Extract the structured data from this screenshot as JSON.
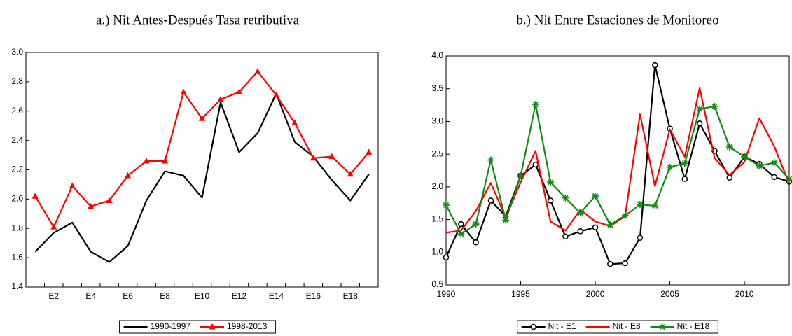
{
  "chart_data": [
    {
      "type": "line",
      "title": "a.) Nit Antes-Después Tasa retributiva",
      "categories": [
        null,
        "E2",
        null,
        "E4",
        null,
        "E6",
        null,
        "E8",
        null,
        "E10",
        null,
        "E12",
        null,
        "E14",
        null,
        "E16",
        null,
        "E18",
        null
      ],
      "series": [
        {
          "name": "1990-1997",
          "color": "#000000",
          "marker": "none",
          "values": [
            1.64,
            1.77,
            1.84,
            1.64,
            1.57,
            1.68,
            1.99,
            2.19,
            2.16,
            2.01,
            2.66,
            2.32,
            2.45,
            2.72,
            2.39,
            2.29,
            2.13,
            1.99,
            2.17
          ]
        },
        {
          "name": "1998-2013",
          "color": "#ff0000",
          "marker": "triangle",
          "values": [
            2.02,
            1.81,
            2.09,
            1.95,
            1.99,
            2.16,
            2.26,
            2.26,
            2.73,
            2.55,
            2.68,
            2.73,
            2.87,
            2.71,
            2.52,
            2.28,
            2.29,
            2.17,
            2.32
          ]
        }
      ],
      "ylim": [
        1.4,
        3.0
      ],
      "yticks": [
        {
          "value": 1.4,
          "label": "1.4"
        },
        {
          "value": 1.6,
          "label": "1.6"
        },
        {
          "value": 1.8,
          "label": "1.8"
        },
        {
          "value": 2.0,
          "label": "2.0"
        },
        {
          "value": 2.2,
          "label": "2.2"
        },
        {
          "value": 2.4,
          "label": "2.4"
        },
        {
          "value": 2.6,
          "label": "2.6"
        },
        {
          "value": 2.8,
          "label": "2.8"
        },
        {
          "value": 3.0,
          "label": "3.0"
        }
      ],
      "grid": false,
      "legend": "bottom"
    },
    {
      "type": "line",
      "title": "b.) Nit Entre Estaciones de Monitoreo",
      "x": [
        1990,
        1991,
        1992,
        1993,
        1994,
        1995,
        1996,
        1997,
        1998,
        1999,
        2000,
        2001,
        2002,
        2003,
        2004,
        2005,
        2006,
        2007,
        2008,
        2009,
        2010,
        2011,
        2012,
        2013
      ],
      "series": [
        {
          "name": "Nit - E1",
          "color": "#000000",
          "marker": "circle",
          "values": [
            0.92,
            1.43,
            1.15,
            1.79,
            1.55,
            2.17,
            2.34,
            1.79,
            1.24,
            1.32,
            1.38,
            0.82,
            0.83,
            1.22,
            3.86,
            2.89,
            2.12,
            2.97,
            2.55,
            2.14,
            2.46,
            2.35,
            2.15,
            2.08
          ]
        },
        {
          "name": "Nit - E8",
          "color": "#ff0000",
          "marker": "none",
          "values": [
            1.3,
            1.33,
            1.63,
            2.06,
            1.53,
            2.07,
            2.55,
            1.47,
            1.33,
            1.65,
            1.47,
            1.4,
            1.55,
            3.11,
            2.01,
            2.88,
            2.46,
            3.51,
            2.44,
            2.18,
            2.38,
            3.05,
            2.62,
            2.05
          ]
        },
        {
          "name": "Nit - E18",
          "color": "#138a13",
          "marker": "star",
          "values": [
            1.72,
            1.28,
            1.43,
            2.41,
            1.49,
            2.17,
            3.26,
            2.07,
            1.83,
            1.6,
            1.86,
            1.42,
            1.56,
            1.73,
            1.71,
            2.3,
            2.36,
            3.19,
            3.23,
            2.61,
            2.46,
            2.32,
            2.37,
            2.12
          ]
        }
      ],
      "xlim": [
        1990,
        2013
      ],
      "xticks": [
        1990,
        1995,
        2000,
        2005,
        2010
      ],
      "ylim": [
        0.5,
        4.0
      ],
      "yticks": [
        {
          "value": 0.5,
          "label": "0.5"
        },
        {
          "value": 1.0,
          "label": "1.0"
        },
        {
          "value": 1.5,
          "label": "1.5"
        },
        {
          "value": 2.0,
          "label": "2.0"
        },
        {
          "value": 2.5,
          "label": "2.5"
        },
        {
          "value": 3.0,
          "label": "3.0"
        },
        {
          "value": 3.5,
          "label": "3.5"
        },
        {
          "value": 4.0,
          "label": "4.0"
        }
      ],
      "grid": false,
      "legend": "bottom"
    }
  ]
}
